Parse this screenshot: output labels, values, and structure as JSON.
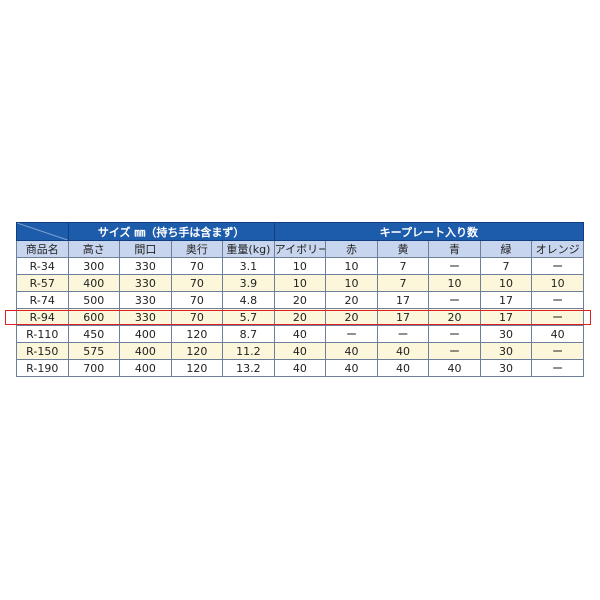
{
  "table": {
    "group_headers": {
      "size": "サイズ ㎜（持ち手は含まず）",
      "plates": "キープレート入り数"
    },
    "columns": [
      "商品名",
      "高さ",
      "間口",
      "奥行",
      "重量(kg)",
      "アイボリー",
      "赤",
      "黄",
      "青",
      "緑",
      "オレンジ"
    ],
    "rows": [
      [
        "R-34",
        "300",
        "330",
        "70",
        "3.1",
        "10",
        "10",
        "7",
        "ー",
        "7",
        "ー"
      ],
      [
        "R-57",
        "400",
        "330",
        "70",
        "3.9",
        "10",
        "10",
        "7",
        "10",
        "10",
        "10"
      ],
      [
        "R-74",
        "500",
        "330",
        "70",
        "4.8",
        "20",
        "20",
        "17",
        "ー",
        "17",
        "ー"
      ],
      [
        "R-94",
        "600",
        "330",
        "70",
        "5.7",
        "20",
        "20",
        "17",
        "20",
        "17",
        "ー"
      ],
      [
        "R-110",
        "450",
        "400",
        "120",
        "8.7",
        "40",
        "ー",
        "ー",
        "ー",
        "30",
        "40"
      ],
      [
        "R-150",
        "575",
        "400",
        "120",
        "11.2",
        "40",
        "40",
        "40",
        "ー",
        "30",
        "ー"
      ],
      [
        "R-190",
        "700",
        "400",
        "120",
        "13.2",
        "40",
        "40",
        "40",
        "40",
        "30",
        "ー"
      ]
    ],
    "highlighted_row": "R-94"
  },
  "colors": {
    "header": "#1d5cab",
    "subheader": "#c7d6ee",
    "alt_row": "#fcf7da",
    "highlight": "#e02020"
  }
}
